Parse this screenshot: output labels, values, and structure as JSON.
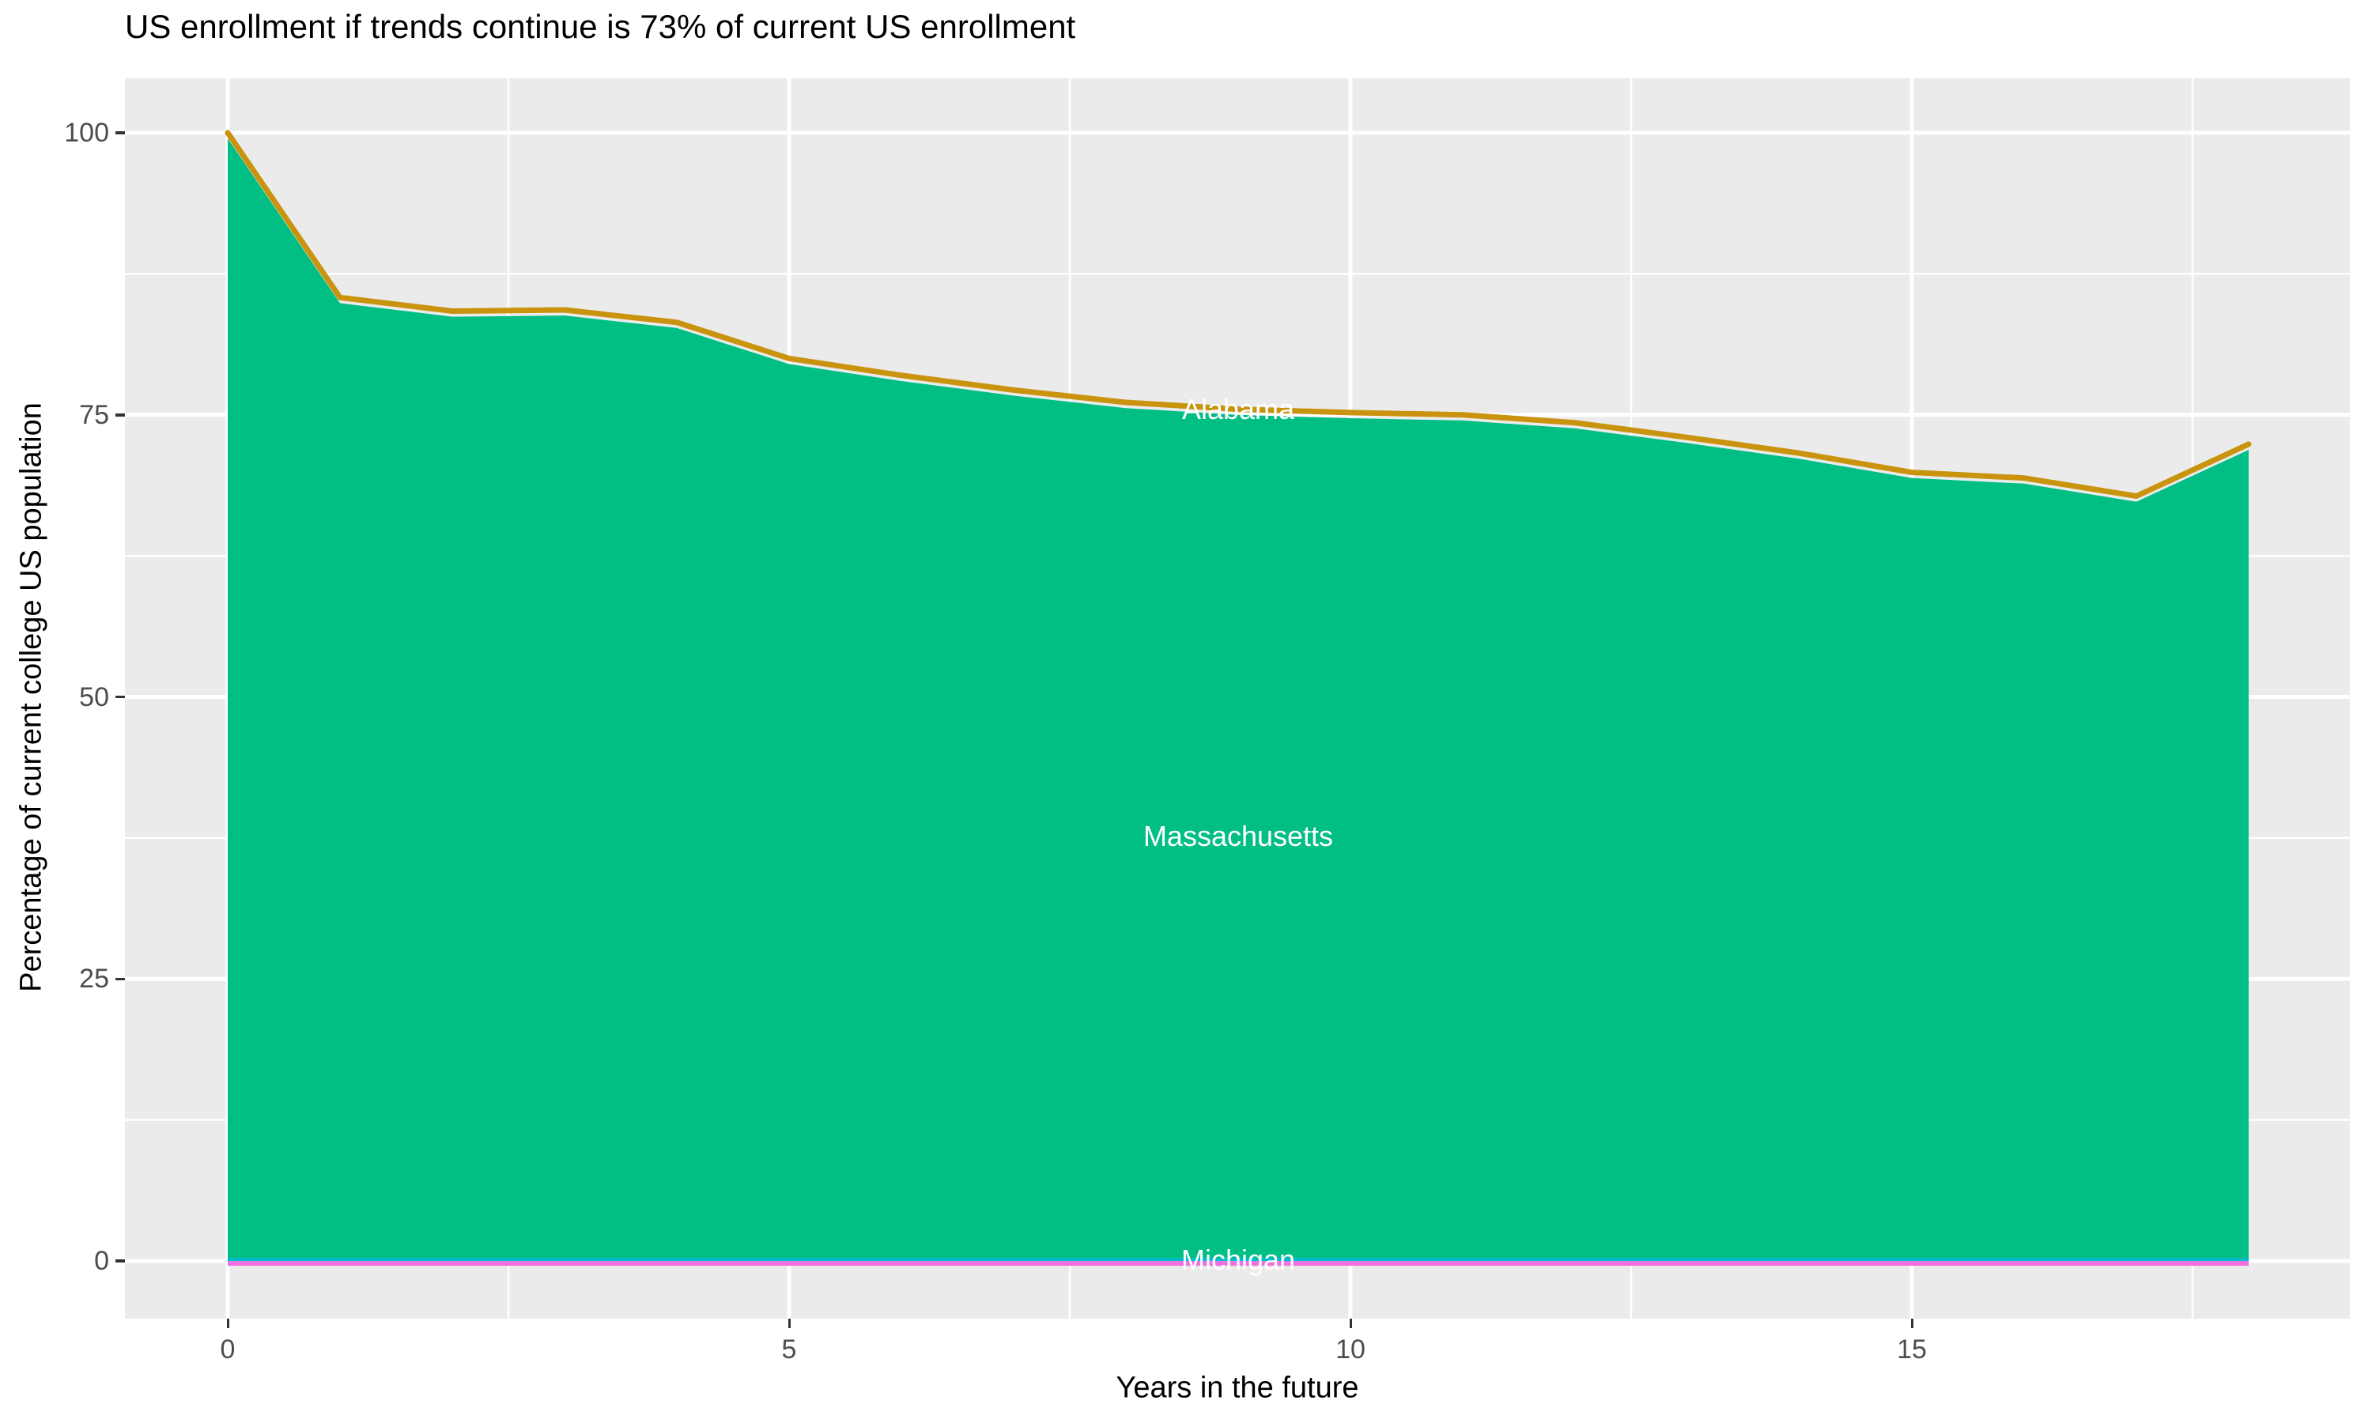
{
  "title": "US enrollment if trends continue is 73% of current US enrollment",
  "chart_data": {
    "type": "area",
    "stacked": true,
    "title": "US enrollment if trends continue is 73% of current US enrollment",
    "xlabel": "Years in the future",
    "ylabel": "Percentage of current college US population",
    "x": [
      0,
      1,
      2,
      3,
      4,
      5,
      6,
      7,
      8,
      9,
      10,
      11,
      12,
      13,
      14,
      15,
      16,
      17,
      18
    ],
    "series": [
      {
        "name": "Michigan",
        "fill": "#F170DF",
        "edge": "#00BCCF",
        "values": [
          0.2,
          0.2,
          0.2,
          0.2,
          0.2,
          0.2,
          0.2,
          0.2,
          0.2,
          0.2,
          0.2,
          0.2,
          0.2,
          0.2,
          0.2,
          0.2,
          0.2,
          0.2,
          0.2
        ]
      },
      {
        "name": "Massachusetts",
        "fill": "#00BE84",
        "values": [
          99.3,
          84.7,
          83.5,
          83.6,
          82.5,
          79.3,
          77.8,
          76.5,
          75.4,
          74.8,
          74.5,
          74.3,
          73.6,
          72.3,
          70.9,
          69.2,
          68.7,
          67.1,
          71.7
        ]
      },
      {
        "name": "Alabama",
        "fill": "#C9930D",
        "values": [
          0.5,
          0.5,
          0.5,
          0.5,
          0.5,
          0.5,
          0.5,
          0.5,
          0.5,
          0.5,
          0.5,
          0.5,
          0.5,
          0.5,
          0.5,
          0.5,
          0.5,
          0.5,
          0.5
        ]
      }
    ],
    "stack_top": [
      100,
      85.4,
      84.2,
      84.3,
      83.2,
      80.0,
      78.5,
      77.2,
      76.1,
      75.5,
      75.2,
      75.0,
      74.3,
      73.0,
      71.6,
      69.9,
      69.4,
      67.8,
      72.4
    ],
    "axes": {
      "x_ticks": [
        0,
        5,
        10,
        15
      ],
      "x_minor": [
        2.5,
        7.5,
        12.5,
        17.5
      ],
      "y_ticks": [
        0,
        25,
        50,
        75,
        100
      ],
      "y_minor": [
        12.5,
        37.5,
        62.5,
        87.5
      ],
      "xlim": [
        -0.9,
        18.9
      ],
      "ylim": [
        -5,
        105
      ],
      "grid": "on",
      "legend": "none"
    },
    "annotations": [
      {
        "text": "Alabama",
        "x": 9,
        "y": 75.5
      },
      {
        "text": "Massachusetts",
        "x": 9,
        "y": 37.6
      },
      {
        "text": "Michigan",
        "x": 9,
        "y": 0.1
      }
    ],
    "colors": {
      "panel_bg": "#EBEBEB",
      "grid": "#FFFFFF",
      "tick_mark": "#333333",
      "tick_label": "#4D4D4D",
      "axis_title": "#000000",
      "title": "#000000",
      "label_text": "#FFFFFF",
      "area_green": "#00BE84",
      "top_line_gold": "#C9930D",
      "bottom_edge_cyan": "#00BCCF",
      "bottom_line_magenta": "#F170DF"
    }
  }
}
